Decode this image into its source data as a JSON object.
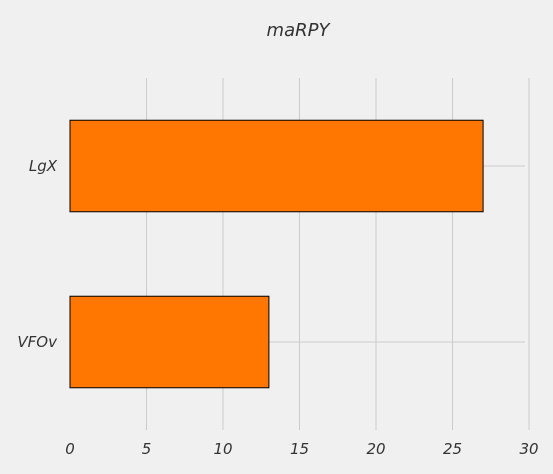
{
  "chart_data": {
    "type": "bar",
    "orientation": "horizontal",
    "title": "maRPY",
    "categories": [
      "LgX",
      "VFOv"
    ],
    "values": [
      27,
      13
    ],
    "xlim": [
      0,
      30
    ],
    "xticks": [
      "0",
      "5",
      "10",
      "15",
      "20",
      "25",
      "30"
    ],
    "xlabel": "",
    "ylabel": "",
    "grid": true,
    "bar_color": "#ff7700",
    "bar_edge_color": "#000000",
    "background_color": "#f0f0f0",
    "grid_color": "#cbcbcb"
  }
}
